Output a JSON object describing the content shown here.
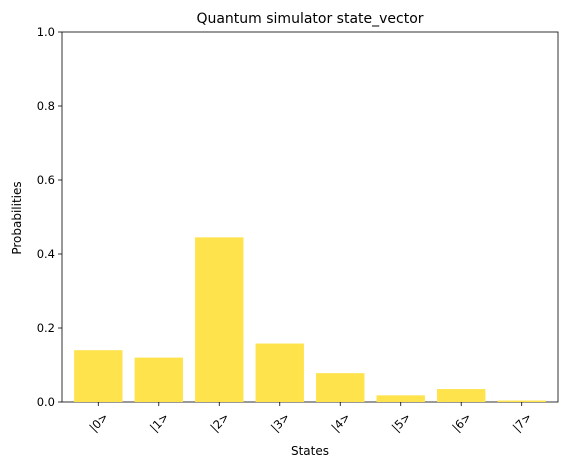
{
  "chart_data": {
    "type": "bar",
    "title": "Quantum simulator state_vector",
    "xlabel": "States",
    "ylabel": "Probabilities",
    "categories": [
      "|0>",
      "|1>",
      "|2>",
      "|3>",
      "|4>",
      "|5>",
      "|6>",
      "|7>"
    ],
    "values": [
      0.14,
      0.12,
      0.445,
      0.158,
      0.078,
      0.018,
      0.035,
      0.004
    ],
    "ylim": [
      0,
      1
    ],
    "yticks": [
      "0.0",
      "0.2",
      "0.4",
      "0.6",
      "0.8",
      "1.0"
    ],
    "bar_color": "#ffe34d",
    "grid": false,
    "legend": "none"
  }
}
